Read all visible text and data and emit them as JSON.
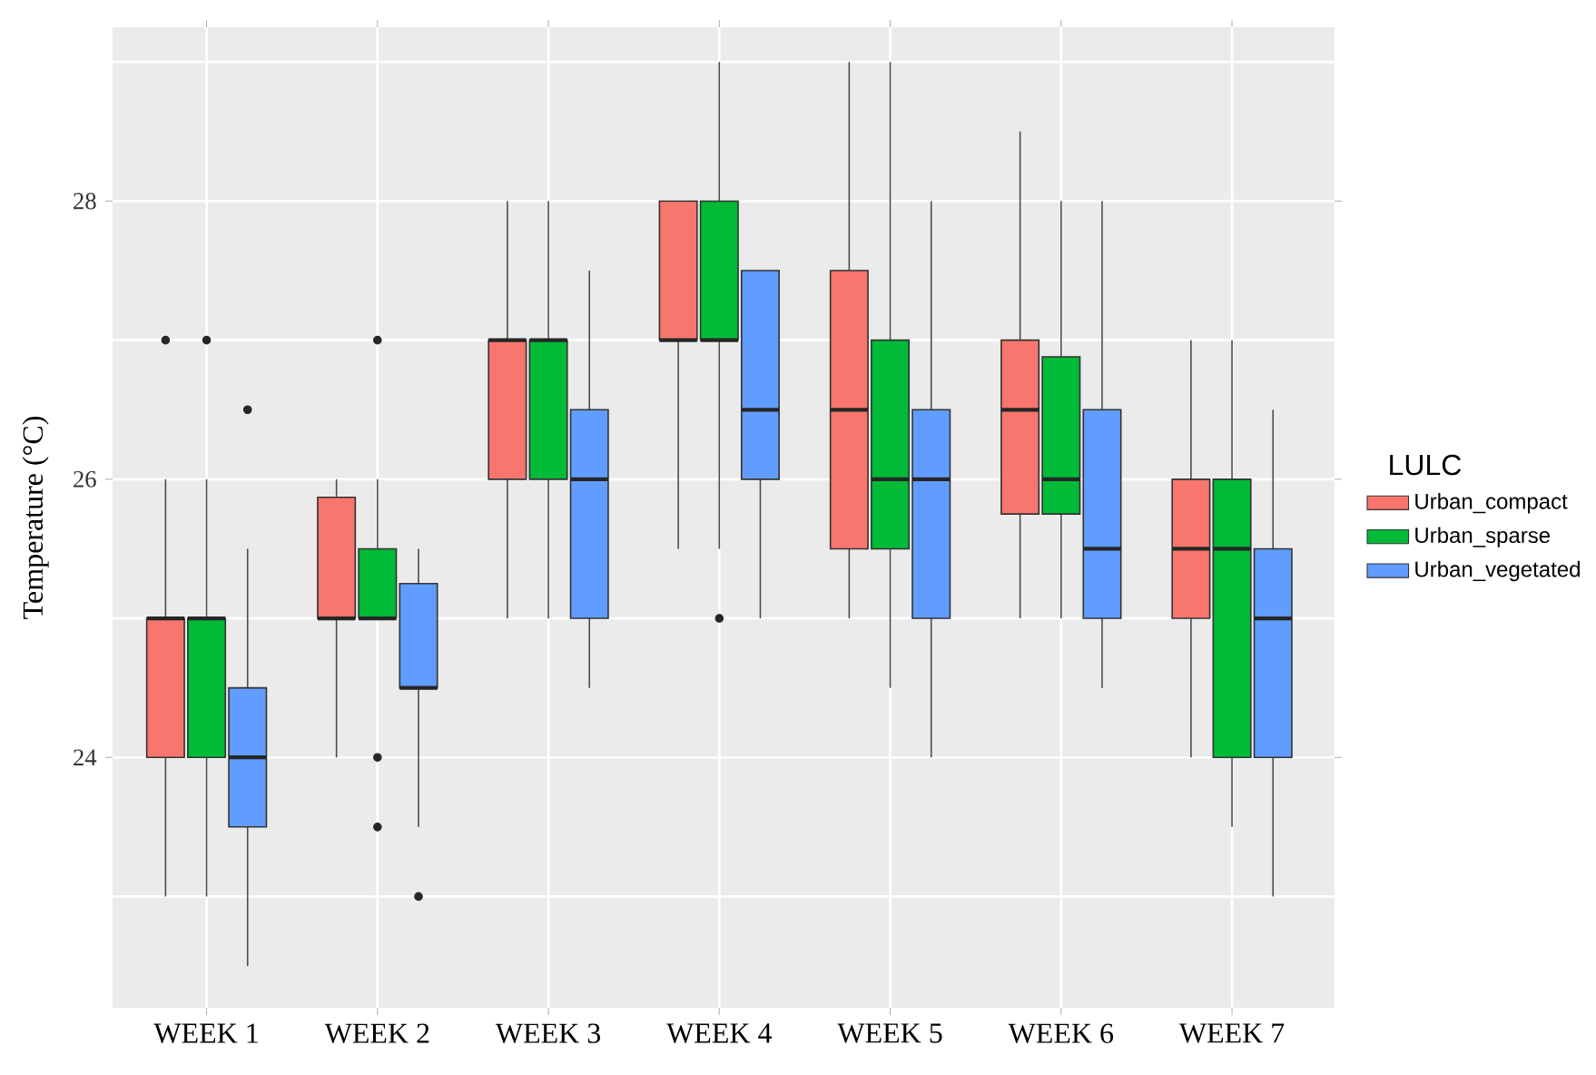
{
  "chart_data": {
    "type": "box",
    "ylabel": "Temperature (°C)",
    "legend_title": "LULC",
    "legend": "right",
    "grid": true,
    "categories": [
      "WEEK 1",
      "WEEK 2",
      "WEEK 3",
      "WEEK 4",
      "WEEK 5",
      "WEEK 6",
      "WEEK 7"
    ],
    "ylim": [
      22.2,
      29.25
    ],
    "yticks": [
      {
        "value": 23,
        "label": null
      },
      24,
      {
        "value": 25,
        "label": null
      },
      26,
      {
        "value": 27,
        "label": null
      },
      28,
      {
        "value": 29,
        "label": null
      }
    ],
    "series": [
      {
        "name": "Urban_compact",
        "color": "#f8766d",
        "boxes": [
          {
            "low": 23,
            "q1": 24,
            "median": 25,
            "q3": 25,
            "high": 26,
            "outliers": [
              27
            ]
          },
          {
            "low": 24,
            "q1": 25,
            "median": 25,
            "q3": 25.87,
            "high": 26
          },
          {
            "low": 25,
            "q1": 26,
            "median": 27,
            "q3": 27,
            "high": 28
          },
          {
            "low": 25.5,
            "q1": 27,
            "median": 27,
            "q3": 28,
            "high": 28
          },
          {
            "low": 25,
            "q1": 25.5,
            "median": 26.5,
            "q3": 27.5,
            "high": 29
          },
          {
            "low": 25,
            "q1": 25.75,
            "median": 26.5,
            "q3": 27,
            "high": 28.5
          },
          {
            "low": 24,
            "q1": 25,
            "median": 25.5,
            "q3": 26,
            "high": 27
          }
        ]
      },
      {
        "name": "Urban_sparse",
        "color": "#00ba38",
        "boxes": [
          {
            "low": 23,
            "q1": 24,
            "median": 25,
            "q3": 25,
            "high": 26,
            "outliers": [
              27
            ]
          },
          {
            "low": 25,
            "q1": 25,
            "median": 25,
            "q3": 25.5,
            "high": 26,
            "outliers": [
              27,
              24,
              23.5
            ]
          },
          {
            "low": 25,
            "q1": 26,
            "median": 27,
            "q3": 27,
            "high": 28
          },
          {
            "low": 25.5,
            "q1": 27,
            "median": 27,
            "q3": 28,
            "high": 29,
            "outliers": [
              25
            ]
          },
          {
            "low": 24.5,
            "q1": 25.5,
            "median": 26,
            "q3": 27,
            "high": 29
          },
          {
            "low": 25,
            "q1": 25.75,
            "median": 26,
            "q3": 26.88,
            "high": 28
          },
          {
            "low": 23.5,
            "q1": 24,
            "median": 25.5,
            "q3": 26,
            "high": 27
          }
        ]
      },
      {
        "name": "Urban_vegetated",
        "color": "#619cff",
        "boxes": [
          {
            "low": 22.5,
            "q1": 23.5,
            "median": 24,
            "q3": 24.5,
            "high": 25.5,
            "outliers": [
              26.5
            ]
          },
          {
            "low": 23.5,
            "q1": 24.5,
            "median": 24.5,
            "q3": 25.25,
            "high": 25.5,
            "outliers": [
              23
            ]
          },
          {
            "low": 24.5,
            "q1": 25,
            "median": 26,
            "q3": 26.5,
            "high": 27.5
          },
          {
            "low": 25,
            "q1": 26,
            "median": 26.5,
            "q3": 27.5,
            "high": 27.5
          },
          {
            "low": 24,
            "q1": 25,
            "median": 26,
            "q3": 26.5,
            "high": 28
          },
          {
            "low": 24.5,
            "q1": 25,
            "median": 25.5,
            "q3": 26.5,
            "high": 28
          },
          {
            "low": 23,
            "q1": 24,
            "median": 25,
            "q3": 25.5,
            "high": 26.5
          }
        ]
      }
    ]
  }
}
